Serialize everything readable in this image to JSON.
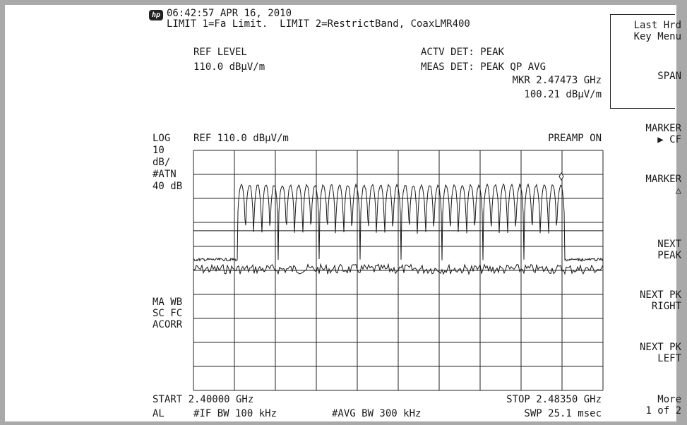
{
  "header": {
    "logo": "hp",
    "timestamp": "06:42:57 APR 16, 2010",
    "limits": "LIMIT 1=Fa Limit.  LIMIT 2=RestrictBand, CoaxLMR400",
    "ref_level_label": "REF LEVEL",
    "ref_level_value": "110.0 dBµV/m",
    "actv_det": "ACTV DET: PEAK",
    "meas_det": "MEAS DET: PEAK QP AVG",
    "marker_freq": "MKR 2.47473 GHz",
    "marker_ampl": "100.21 dBµV/m"
  },
  "display": {
    "scale_type": "LOG",
    "ref": "REF 110.0 dBµV/m",
    "preamp": "PREAMP ON",
    "scale_div": "10",
    "scale_unit": "dB/",
    "atten_label": "#ATN",
    "atten_value": "40 dB",
    "left_annot_1": "MA WB",
    "left_annot_2": "SC FC",
    "left_annot_3": "ACORR"
  },
  "footer": {
    "start": "START 2.40000 GHz",
    "stop": "STOP 2.48350 GHz",
    "al": "AL",
    "if_bw": "#IF BW 100 kHz",
    "avg_bw": "#AVG BW 300 kHz",
    "sweep": "SWP 25.1 msec"
  },
  "softkeys": {
    "last_hrd_1": "Last Hrd",
    "last_hrd_2": "Key Menu",
    "span": "SPAN",
    "marker_cf_1": "MARKER",
    "marker_cf_2": "▶ CF",
    "marker_delta_1": "MARKER",
    "marker_delta_2": "△",
    "next_peak_1": "NEXT",
    "next_peak_2": "PEAK",
    "next_pk_right_1": "NEXT PK",
    "next_pk_right_2": "RIGHT",
    "next_pk_left_1": "NEXT PK",
    "next_pk_left_2": "LEFT",
    "more_1": "More",
    "more_2": "1 of 2"
  },
  "colors": {
    "background": "#a9a9a9",
    "screen": "#ffffff",
    "trace": "#1a1a1a"
  }
}
